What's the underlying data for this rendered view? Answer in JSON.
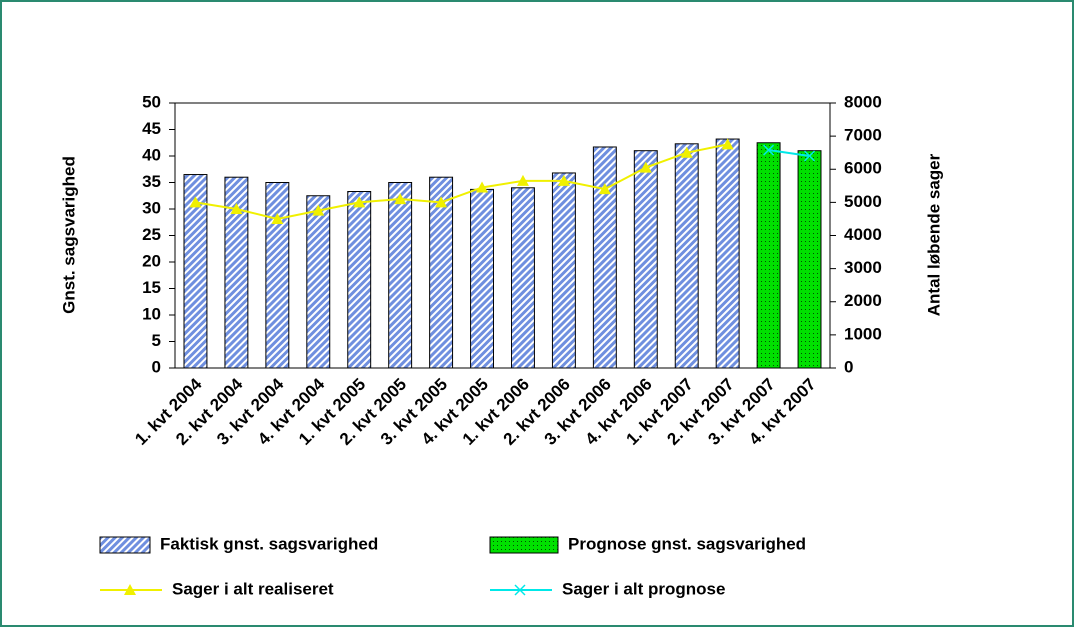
{
  "chart_data": {
    "type": "bar",
    "categories": [
      "1. kvt 2004",
      "2. kvt 2004",
      "3. kvt 2004",
      "4. kvt 2004",
      "1. kvt 2005",
      "2. kvt 2005",
      "3. kvt 2005",
      "4. kvt 2005",
      "1. kvt 2006",
      "2. kvt 2006",
      "3. kvt 2006",
      "4. kvt 2006",
      "1. kvt 2007",
      "2. kvt 2007",
      "3. kvt 2007",
      "4. kvt 2007"
    ],
    "y_label": "Gnst. sagsvarighed",
    "y2_label": "Antal løbende sager",
    "ylim": [
      0,
      50
    ],
    "yticks": [
      0,
      5,
      10,
      15,
      20,
      25,
      30,
      35,
      40,
      45,
      50
    ],
    "y2lim": [
      0,
      8000
    ],
    "y2ticks": [
      0,
      1000,
      2000,
      3000,
      4000,
      5000,
      6000,
      7000,
      8000
    ],
    "series": [
      {
        "name": "Faktisk gnst. sagsvarighed",
        "type": "bar",
        "color": "#8fa8e8",
        "axis": "y",
        "values": [
          36.5,
          36,
          35,
          32.5,
          33.3,
          35,
          36,
          33.7,
          34,
          36.8,
          41.7,
          41,
          42.3,
          43.2,
          null,
          null
        ]
      },
      {
        "name": "Prognose gnst. sagsvarighed",
        "type": "bar",
        "color": "#00e000",
        "axis": "y",
        "values": [
          null,
          null,
          null,
          null,
          null,
          null,
          null,
          null,
          null,
          null,
          null,
          null,
          null,
          null,
          42.5,
          41
        ]
      },
      {
        "name": "Sager i alt realiseret",
        "type": "line",
        "color": "#f0f000",
        "axis": "y2",
        "values": [
          5000,
          4800,
          4500,
          4750,
          5000,
          5100,
          5000,
          5450,
          5650,
          5650,
          5400,
          6050,
          6500,
          6750,
          null,
          null
        ]
      },
      {
        "name": "Sager i alt prognose",
        "type": "line",
        "color": "#00e8e8",
        "axis": "y2",
        "values": [
          null,
          null,
          null,
          null,
          null,
          null,
          null,
          null,
          null,
          null,
          null,
          null,
          null,
          null,
          6580,
          6400
        ]
      }
    ]
  }
}
